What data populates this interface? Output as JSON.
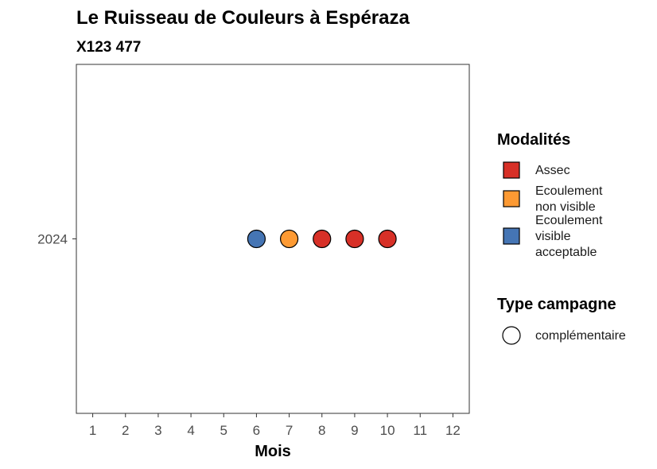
{
  "chart_data": {
    "type": "scatter",
    "title": "Le Ruisseau de Couleurs à Espéraza",
    "subtitle": "X123 477",
    "xlabel": "Mois",
    "ylabel": "",
    "x_ticks": [
      1,
      2,
      3,
      4,
      5,
      6,
      7,
      8,
      9,
      10,
      11,
      12
    ],
    "xlim": [
      0.5,
      12.5
    ],
    "y_categories": [
      "2024"
    ],
    "grid": false,
    "points": [
      {
        "x": 6,
        "y": "2024",
        "modalite": "Ecoulement visible acceptable",
        "type": "complémentaire"
      },
      {
        "x": 7,
        "y": "2024",
        "modalite": "Ecoulement non visible",
        "type": "complémentaire"
      },
      {
        "x": 8,
        "y": "2024",
        "modalite": "Assec",
        "type": "complémentaire"
      },
      {
        "x": 9,
        "y": "2024",
        "modalite": "Assec",
        "type": "complémentaire"
      },
      {
        "x": 10,
        "y": "2024",
        "modalite": "Assec",
        "type": "complémentaire"
      }
    ],
    "legend": {
      "placement": "right",
      "color_title": "Modalités",
      "color_entries": [
        {
          "lines": [
            "Assec"
          ],
          "color": "#d73027"
        },
        {
          "lines": [
            "Ecoulement",
            "non visible"
          ],
          "color": "#fd9a33"
        },
        {
          "lines": [
            "Ecoulement",
            "visible",
            "acceptable"
          ],
          "color": "#4575b4"
        }
      ],
      "shape_title": "Type campagne",
      "shape_entries": [
        {
          "label": "complémentaire",
          "shape": "circle"
        }
      ]
    },
    "colors": {
      "Assec": "#d73027",
      "Ecoulement non visible": "#fd9a33",
      "Ecoulement visible acceptable": "#4575b4"
    }
  }
}
